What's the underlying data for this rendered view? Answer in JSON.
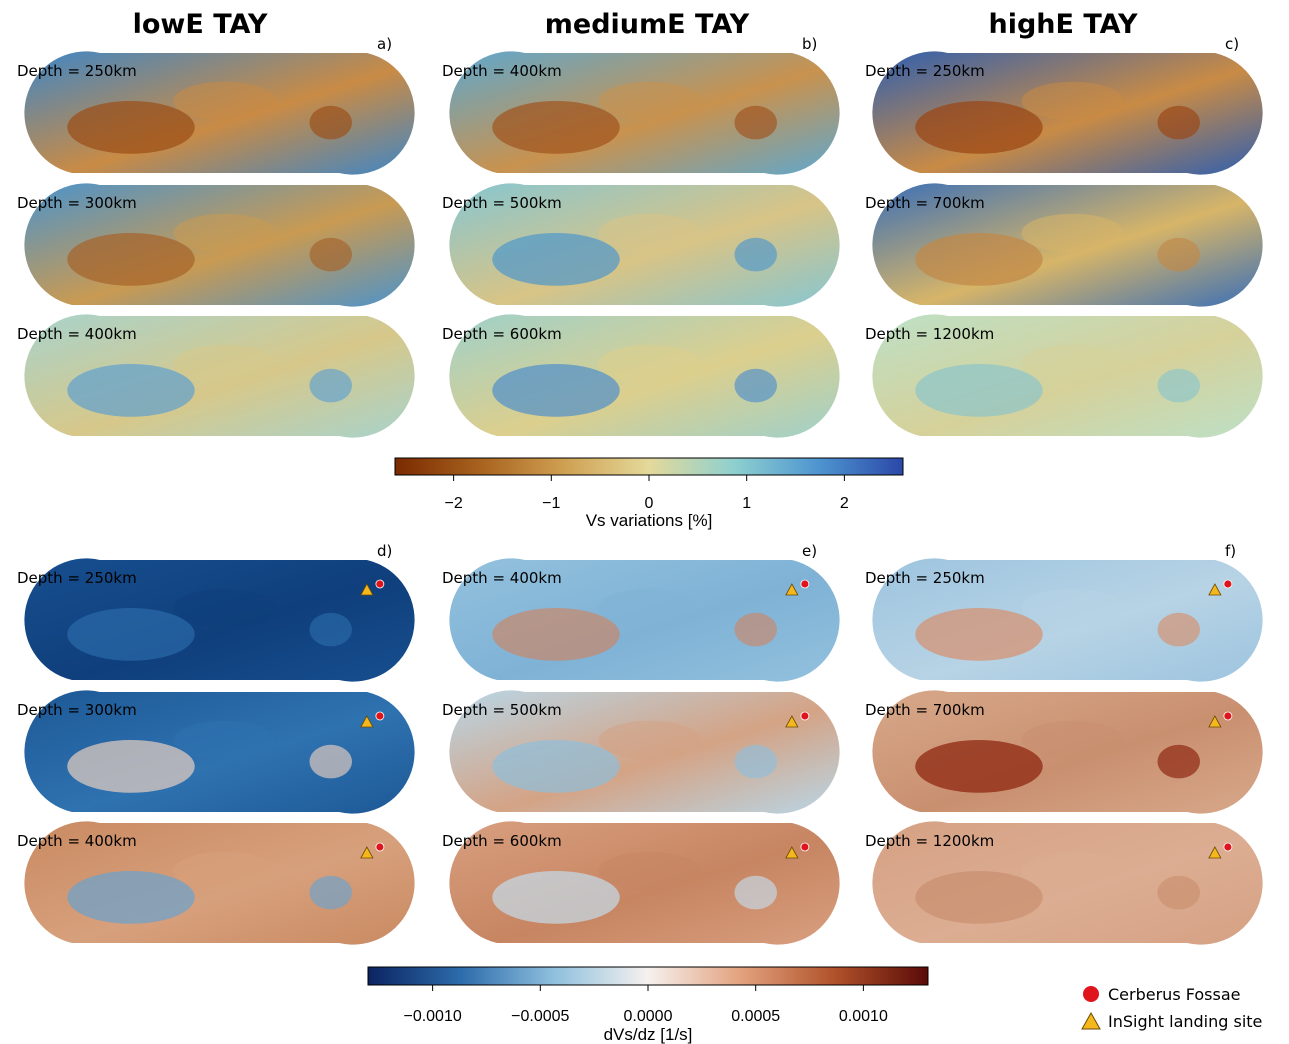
{
  "columns": [
    "lowE TAY",
    "mediumE TAY",
    "highE TAY"
  ],
  "top_panels": [
    {
      "label": "a)",
      "depths": [
        "Depth = 250km",
        "Depth = 300km",
        "Depth = 400km"
      ]
    },
    {
      "label": "b)",
      "depths": [
        "Depth = 400km",
        "Depth = 500km",
        "Depth = 600km"
      ]
    },
    {
      "label": "c)",
      "depths": [
        "Depth = 250km",
        "Depth = 700km",
        "Depth = 1200km"
      ]
    }
  ],
  "bottom_panels": [
    {
      "label": "d)",
      "depths": [
        "Depth = 250km",
        "Depth = 300km",
        "Depth = 400km"
      ]
    },
    {
      "label": "e)",
      "depths": [
        "Depth = 400km",
        "Depth = 500km",
        "Depth = 600km"
      ]
    },
    {
      "label": "f)",
      "depths": [
        "Depth = 250km",
        "Depth = 700km",
        "Depth = 1200km"
      ]
    }
  ],
  "colorbar_vs": {
    "label": "Vs variations [%]",
    "ticks": [
      "−2",
      "−1",
      "0",
      "1",
      "2"
    ],
    "tick_values": [
      -2,
      -1,
      0,
      1,
      2
    ],
    "range": [
      -2.6,
      2.6
    ],
    "colors": [
      "#7a2a00",
      "#a8621e",
      "#cfa052",
      "#e4d99a",
      "#8fd0cf",
      "#4e95d0",
      "#2b48a8"
    ]
  },
  "colorbar_grad": {
    "label": "dVs/dz [1/s]",
    "ticks": [
      "−0.0010",
      "−0.0005",
      "0.0000",
      "0.0005",
      "0.0010"
    ],
    "tick_values": [
      -0.001,
      -0.0005,
      0,
      0.0005,
      0.001
    ],
    "range": [
      -0.0013,
      0.0013
    ],
    "colors": [
      "#0b2461",
      "#2d6cab",
      "#8fc0de",
      "#f6f1ee",
      "#e2a17d",
      "#b0522a",
      "#5a0a08"
    ]
  },
  "legend": {
    "items": [
      {
        "label": "Cerberus Fossae",
        "symbol": "circle",
        "color": "#e0141d"
      },
      {
        "label": "InSight landing site",
        "symbol": "triangle",
        "color": "#f4b71e"
      }
    ]
  }
}
